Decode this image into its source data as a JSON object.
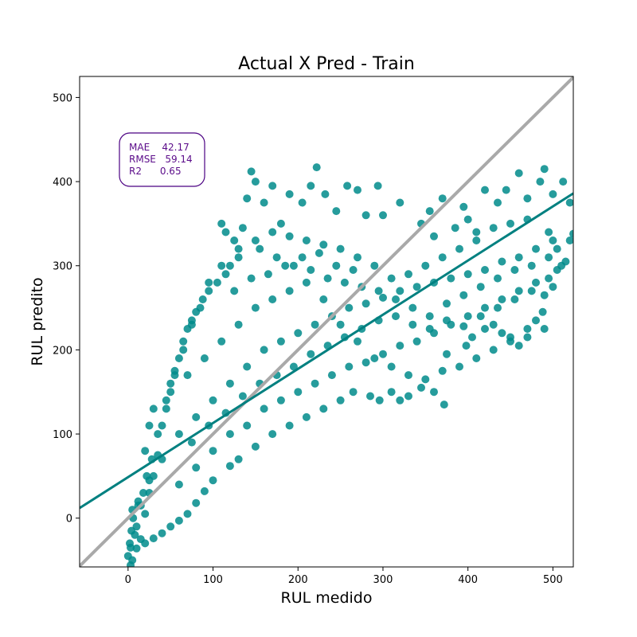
{
  "chart_data": {
    "type": "scatter",
    "title": "Actual X Pred - Train",
    "xlabel": "RUL medido",
    "ylabel": "RUL predito",
    "xlim": [
      -57,
      524
    ],
    "ylim": [
      -58,
      525
    ],
    "xticks": [
      0,
      100,
      200,
      300,
      400,
      500
    ],
    "yticks": [
      0,
      100,
      200,
      300,
      400,
      500
    ],
    "grid": false,
    "colors": {
      "points": "#008b8b",
      "regression": "#008080",
      "identity": "#a9a9a9",
      "metrics_text": "#5b0c8a",
      "metrics_border": "#4b0082"
    },
    "regression_line": {
      "x": [
        -57,
        524
      ],
      "y": [
        12,
        386
      ]
    },
    "identity_line": {
      "x": [
        -57,
        524
      ],
      "y": [
        -57,
        524
      ]
    },
    "metrics": {
      "mae": "MAE    42.17",
      "rmse": "RMSE   59.14",
      "r2": "R2      0.65"
    },
    "series": [
      {
        "values": [
          [
            0,
            -45
          ],
          [
            3,
            -56
          ],
          [
            5,
            -50
          ],
          [
            2,
            -30
          ],
          [
            8,
            -20
          ],
          [
            10,
            -10
          ],
          [
            15,
            -25
          ],
          [
            5,
            10
          ],
          [
            12,
            20
          ],
          [
            20,
            5
          ],
          [
            25,
            30
          ],
          [
            30,
            50
          ],
          [
            35,
            75
          ],
          [
            40,
            110
          ],
          [
            45,
            140
          ],
          [
            50,
            160
          ],
          [
            55,
            175
          ],
          [
            60,
            190
          ],
          [
            65,
            210
          ],
          [
            70,
            225
          ],
          [
            75,
            235
          ],
          [
            80,
            245
          ],
          [
            88,
            260
          ],
          [
            95,
            270
          ],
          [
            105,
            280
          ],
          [
            115,
            290
          ],
          [
            120,
            300
          ],
          [
            130,
            310
          ],
          [
            135,
            345
          ],
          [
            140,
            380
          ],
          [
            145,
            412
          ],
          [
            150,
            400
          ],
          [
            160,
            375
          ],
          [
            170,
            395
          ],
          [
            180,
            350
          ],
          [
            190,
            385
          ],
          [
            205,
            375
          ],
          [
            215,
            395
          ],
          [
            222,
            417
          ],
          [
            232,
            385
          ],
          [
            245,
            365
          ],
          [
            258,
            395
          ],
          [
            270,
            390
          ],
          [
            280,
            360
          ],
          [
            294,
            395
          ],
          [
            300,
            360
          ],
          [
            320,
            375
          ],
          [
            345,
            350
          ],
          [
            355,
            365
          ],
          [
            360,
            335
          ],
          [
            370,
            380
          ],
          [
            385,
            345
          ],
          [
            395,
            370
          ],
          [
            400,
            355
          ],
          [
            410,
            340
          ],
          [
            420,
            390
          ],
          [
            435,
            375
          ],
          [
            445,
            390
          ],
          [
            460,
            410
          ],
          [
            470,
            380
          ],
          [
            485,
            400
          ],
          [
            490,
            415
          ],
          [
            500,
            385
          ],
          [
            512,
            400
          ],
          [
            520,
            375
          ],
          [
            524,
            338
          ],
          [
            520,
            330
          ],
          [
            515,
            305
          ],
          [
            505,
            295
          ],
          [
            500,
            275
          ],
          [
            490,
            265
          ],
          [
            488,
            245
          ],
          [
            480,
            235
          ],
          [
            470,
            225
          ],
          [
            450,
            215
          ],
          [
            460,
            205
          ],
          [
            440,
            220
          ],
          [
            430,
            230
          ],
          [
            420,
            225
          ],
          [
            405,
            215
          ],
          [
            398,
            205
          ],
          [
            375,
            195
          ],
          [
            372,
            135
          ],
          [
            360,
            150
          ],
          [
            345,
            155
          ],
          [
            330,
            145
          ],
          [
            320,
            140
          ],
          [
            310,
            150
          ],
          [
            296,
            140
          ],
          [
            285,
            145
          ],
          [
            265,
            150
          ],
          [
            250,
            140
          ],
          [
            230,
            130
          ],
          [
            210,
            120
          ],
          [
            190,
            110
          ],
          [
            170,
            100
          ],
          [
            150,
            85
          ],
          [
            130,
            70
          ],
          [
            120,
            62
          ],
          [
            100,
            45
          ],
          [
            90,
            32
          ],
          [
            80,
            18
          ],
          [
            70,
            5
          ],
          [
            60,
            -3
          ],
          [
            50,
            -10
          ],
          [
            40,
            -18
          ],
          [
            30,
            -24
          ],
          [
            20,
            -30
          ],
          [
            10,
            -36
          ],
          [
            15,
            15
          ],
          [
            25,
            45
          ],
          [
            40,
            70
          ],
          [
            60,
            100
          ],
          [
            80,
            120
          ],
          [
            100,
            140
          ],
          [
            120,
            160
          ],
          [
            140,
            180
          ],
          [
            160,
            200
          ],
          [
            180,
            210
          ],
          [
            200,
            220
          ],
          [
            220,
            230
          ],
          [
            240,
            240
          ],
          [
            260,
            250
          ],
          [
            280,
            255
          ],
          [
            300,
            262
          ],
          [
            320,
            270
          ],
          [
            340,
            275
          ],
          [
            360,
            280
          ],
          [
            380,
            285
          ],
          [
            400,
            290
          ],
          [
            420,
            295
          ],
          [
            440,
            305
          ],
          [
            460,
            310
          ],
          [
            480,
            320
          ],
          [
            500,
            330
          ],
          [
            110,
            350
          ],
          [
            115,
            340
          ],
          [
            125,
            330
          ],
          [
            155,
            320
          ],
          [
            175,
            310
          ],
          [
            195,
            300
          ],
          [
            215,
            295
          ],
          [
            235,
            285
          ],
          [
            255,
            280
          ],
          [
            275,
            275
          ],
          [
            295,
            270
          ],
          [
            315,
            260
          ],
          [
            335,
            250
          ],
          [
            355,
            240
          ],
          [
            375,
            235
          ],
          [
            395,
            228
          ],
          [
            415,
            240
          ],
          [
            435,
            250
          ],
          [
            455,
            260
          ],
          [
            475,
            270
          ],
          [
            495,
            285
          ],
          [
            510,
            300
          ],
          [
            505,
            320
          ],
          [
            495,
            340
          ],
          [
            470,
            355
          ],
          [
            450,
            350
          ],
          [
            430,
            345
          ],
          [
            410,
            330
          ],
          [
            390,
            320
          ],
          [
            370,
            310
          ],
          [
            350,
            300
          ],
          [
            330,
            290
          ],
          [
            310,
            285
          ],
          [
            290,
            300
          ],
          [
            270,
            310
          ],
          [
            250,
            320
          ],
          [
            230,
            325
          ],
          [
            210,
            330
          ],
          [
            190,
            335
          ],
          [
            170,
            340
          ],
          [
            150,
            330
          ],
          [
            130,
            320
          ],
          [
            110,
            300
          ],
          [
            95,
            280
          ],
          [
            85,
            250
          ],
          [
            75,
            230
          ],
          [
            65,
            200
          ],
          [
            55,
            170
          ],
          [
            45,
            130
          ],
          [
            35,
            100
          ],
          [
            28,
            70
          ],
          [
            22,
            50
          ],
          [
            18,
            30
          ],
          [
            12,
            15
          ],
          [
            6,
            0
          ],
          [
            4,
            -15
          ],
          [
            3,
            -35
          ],
          [
            20,
            80
          ],
          [
            25,
            110
          ],
          [
            30,
            130
          ],
          [
            50,
            150
          ],
          [
            70,
            170
          ],
          [
            90,
            190
          ],
          [
            110,
            210
          ],
          [
            130,
            230
          ],
          [
            150,
            250
          ],
          [
            170,
            260
          ],
          [
            190,
            270
          ],
          [
            210,
            280
          ],
          [
            230,
            260
          ],
          [
            250,
            230
          ],
          [
            270,
            210
          ],
          [
            290,
            190
          ],
          [
            310,
            180
          ],
          [
            330,
            170
          ],
          [
            350,
            165
          ],
          [
            370,
            175
          ],
          [
            390,
            180
          ],
          [
            410,
            190
          ],
          [
            430,
            200
          ],
          [
            450,
            210
          ],
          [
            470,
            215
          ],
          [
            490,
            225
          ],
          [
            60,
            40
          ],
          [
            80,
            60
          ],
          [
            100,
            80
          ],
          [
            120,
            100
          ],
          [
            140,
            110
          ],
          [
            160,
            130
          ],
          [
            180,
            140
          ],
          [
            200,
            150
          ],
          [
            220,
            160
          ],
          [
            240,
            170
          ],
          [
            260,
            180
          ],
          [
            280,
            185
          ],
          [
            300,
            195
          ],
          [
            320,
            205
          ],
          [
            340,
            210
          ],
          [
            360,
            220
          ],
          [
            380,
            230
          ],
          [
            400,
            240
          ],
          [
            420,
            250
          ],
          [
            440,
            260
          ],
          [
            460,
            270
          ],
          [
            480,
            280
          ],
          [
            75,
            90
          ],
          [
            95,
            110
          ],
          [
            115,
            125
          ],
          [
            135,
            145
          ],
          [
            155,
            160
          ],
          [
            175,
            170
          ],
          [
            195,
            180
          ],
          [
            215,
            195
          ],
          [
            235,
            205
          ],
          [
            255,
            215
          ],
          [
            275,
            225
          ],
          [
            295,
            235
          ],
          [
            315,
            240
          ],
          [
            335,
            230
          ],
          [
            355,
            225
          ],
          [
            375,
            255
          ],
          [
            395,
            265
          ],
          [
            415,
            275
          ],
          [
            435,
            285
          ],
          [
            455,
            295
          ],
          [
            475,
            300
          ],
          [
            495,
            310
          ],
          [
            125,
            270
          ],
          [
            145,
            285
          ],
          [
            165,
            290
          ],
          [
            185,
            300
          ],
          [
            205,
            310
          ],
          [
            225,
            315
          ],
          [
            245,
            300
          ],
          [
            265,
            295
          ]
        ]
      }
    ]
  }
}
